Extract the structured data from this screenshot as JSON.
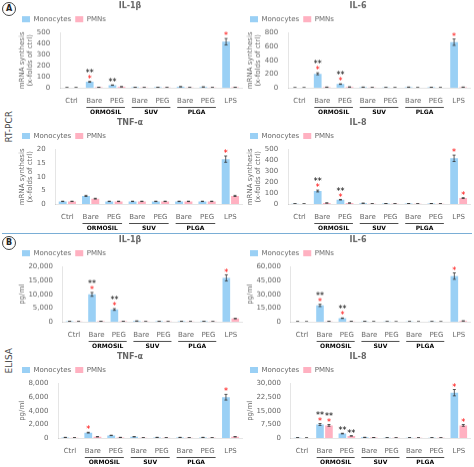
{
  "sections": [
    {
      "label": "A",
      "title": "RT-PCR"
    },
    {
      "label": "B",
      "title": "ELISA"
    }
  ],
  "chart_data": [
    {
      "type": "bar",
      "section": "A",
      "title": "IL-1β",
      "ylabel": "mRNA synthesis\n(x-folds of ctrl)",
      "categories": [
        "Ctrl",
        "Bare",
        "PEG",
        "Bare",
        "PEG",
        "Bare",
        "PEG",
        "LPS"
      ],
      "groups": [
        {
          "label": "ORMOSIL",
          "start": 1,
          "end": 2
        },
        {
          "label": "SUV",
          "start": 3,
          "end": 4
        },
        {
          "label": "PLGA",
          "start": 5,
          "end": 6
        }
      ],
      "series": [
        {
          "name": "Monocytes",
          "values": [
            2,
            55,
            25,
            5,
            5,
            10,
            8,
            420
          ],
          "errors": [
            0.14,
            3.85,
            1.75,
            0.35,
            0.35,
            0.7,
            0.56,
            29.4
          ]
        },
        {
          "name": "PMNs",
          "values": [
            2,
            5,
            10,
            3,
            3,
            3,
            3,
            5
          ],
          "errors": [
            0.14,
            0.35,
            0.7,
            0.21,
            0.21,
            0.21,
            0.21,
            0.35
          ]
        }
      ],
      "ylim": [
        0,
        500
      ],
      "yticks": [
        0,
        100,
        200,
        300,
        400,
        500
      ],
      "grid": false,
      "legend": "top",
      "annotations": [
        {
          "category": 1,
          "series": "Monocytes",
          "text": "*",
          "color": "red"
        },
        {
          "category": 1,
          "series": "Monocytes",
          "text": "**",
          "color": "black"
        },
        {
          "category": 2,
          "series": "Monocytes",
          "text": "**",
          "color": "black"
        },
        {
          "category": 7,
          "series": "Monocytes",
          "text": "*",
          "color": "red"
        }
      ]
    },
    {
      "type": "bar",
      "section": "A",
      "title": "IL-6",
      "ylabel": "mRNA synthesis\n(x-folds of ctrl)",
      "categories": [
        "Ctrl",
        "Bare",
        "PEG",
        "Bare",
        "PEG",
        "Bare",
        "PEG",
        "LPS"
      ],
      "groups": [
        {
          "label": "ORMOSIL",
          "start": 1,
          "end": 2
        },
        {
          "label": "SUV",
          "start": 3,
          "end": 4
        },
        {
          "label": "PLGA",
          "start": 5,
          "end": 6
        }
      ],
      "series": [
        {
          "name": "Monocytes",
          "values": [
            2,
            205,
            55,
            10,
            5,
            10,
            8,
            665
          ],
          "errors": [
            0.14,
            14.35,
            3.85,
            0.7,
            0.35,
            0.7,
            0.56,
            46.55
          ]
        },
        {
          "name": "PMNs",
          "values": [
            2,
            10,
            12,
            5,
            3,
            3,
            3,
            10
          ],
          "errors": [
            0.14,
            0.7,
            0.84,
            0.35,
            0.21,
            0.21,
            0.21,
            0.7
          ]
        }
      ],
      "ylim": [
        0,
        800
      ],
      "yticks": [
        0,
        200,
        400,
        600,
        800
      ],
      "grid": false,
      "legend": "top",
      "annotations": [
        {
          "category": 1,
          "series": "Monocytes",
          "text": "*",
          "color": "red"
        },
        {
          "category": 1,
          "series": "Monocytes",
          "text": "**",
          "color": "black"
        },
        {
          "category": 2,
          "series": "Monocytes",
          "text": "*",
          "color": "red"
        },
        {
          "category": 2,
          "series": "Monocytes",
          "text": "**",
          "color": "black"
        },
        {
          "category": 7,
          "series": "Monocytes",
          "text": "*",
          "color": "red"
        }
      ]
    },
    {
      "type": "bar",
      "section": "A",
      "title": "TNF-α",
      "ylabel": "mRNA synthesis\n(x-folds of ctrl)",
      "categories": [
        "Ctrl",
        "Bare",
        "PEG",
        "Bare",
        "PEG",
        "Bare",
        "PEG",
        "LPS"
      ],
      "groups": [
        {
          "label": "ORMOSIL",
          "start": 1,
          "end": 2
        },
        {
          "label": "SUV",
          "start": 3,
          "end": 4
        },
        {
          "label": "PLGA",
          "start": 5,
          "end": 6
        }
      ],
      "series": [
        {
          "name": "Monocytes",
          "values": [
            1,
            3,
            1,
            1,
            1,
            1,
            1,
            16.5
          ],
          "errors": [
            0.07,
            0.21,
            0.07,
            0.07,
            0.07,
            0.07,
            0.07,
            1.155
          ]
        },
        {
          "name": "PMNs",
          "values": [
            1,
            2,
            1,
            1,
            1,
            1,
            1,
            3
          ],
          "errors": [
            0.07,
            0.14,
            0.07,
            0.07,
            0.07,
            0.07,
            0.07,
            0.21
          ]
        }
      ],
      "ylim": [
        0,
        20
      ],
      "yticks": [
        0,
        5,
        10,
        15,
        20
      ],
      "grid": false,
      "legend": "top",
      "annotations": [
        {
          "category": 7,
          "series": "Monocytes",
          "text": "*",
          "color": "red"
        }
      ]
    },
    {
      "type": "bar",
      "section": "A",
      "title": "IL-8",
      "ylabel": "mRNA synthesis\n(x-folds of ctrl)",
      "categories": [
        "Ctrl",
        "Bare",
        "PEG",
        "Bare",
        "PEG",
        "Bare",
        "PEG",
        "LPS"
      ],
      "groups": [
        {
          "label": "ORMOSIL",
          "start": 1,
          "end": 2
        },
        {
          "label": "SUV",
          "start": 3,
          "end": 4
        },
        {
          "label": "PLGA",
          "start": 5,
          "end": 6
        }
      ],
      "series": [
        {
          "name": "Monocytes",
          "values": [
            3,
            120,
            40,
            8,
            5,
            5,
            5,
            420
          ],
          "errors": [
            0.21,
            8.4,
            2.8,
            0.56,
            0.35,
            0.35,
            0.35,
            29.4
          ]
        },
        {
          "name": "PMNs",
          "values": [
            2,
            10,
            10,
            3,
            3,
            3,
            3,
            55
          ],
          "errors": [
            0.14,
            0.7,
            0.7,
            0.21,
            0.21,
            0.21,
            0.21,
            3.85
          ]
        }
      ],
      "ylim": [
        0,
        500
      ],
      "yticks": [
        0,
        100,
        200,
        300,
        400,
        500
      ],
      "grid": false,
      "legend": "top",
      "annotations": [
        {
          "category": 1,
          "series": "Monocytes",
          "text": "*",
          "color": "red"
        },
        {
          "category": 1,
          "series": "Monocytes",
          "text": "**",
          "color": "black"
        },
        {
          "category": 2,
          "series": "Monocytes",
          "text": "*",
          "color": "red"
        },
        {
          "category": 2,
          "series": "Monocytes",
          "text": "**",
          "color": "black"
        },
        {
          "category": 7,
          "series": "Monocytes",
          "text": "*",
          "color": "red"
        },
        {
          "category": 7,
          "series": "PMNs",
          "text": "*",
          "color": "red"
        }
      ]
    },
    {
      "type": "bar",
      "section": "B",
      "title": "IL-1β",
      "ylabel": "pg/ml",
      "categories": [
        "Ctrl",
        "Bare",
        "PEG",
        "Bare",
        "PEG",
        "Bare",
        "PEG",
        "LPS"
      ],
      "groups": [
        {
          "label": "ORMOSIL",
          "start": 1,
          "end": 2
        },
        {
          "label": "SUV",
          "start": 3,
          "end": 4
        },
        {
          "label": "PLGA",
          "start": 5,
          "end": 6
        }
      ],
      "series": [
        {
          "name": "Monocytes",
          "values": [
            200,
            10000,
            4500,
            300,
            200,
            200,
            200,
            16000
          ],
          "errors": [
            14,
            700,
            315,
            21,
            14,
            14,
            14,
            1120
          ]
        },
        {
          "name": "PMNs",
          "values": [
            100,
            200,
            200,
            100,
            100,
            100,
            100,
            1200
          ],
          "errors": [
            7,
            14,
            14,
            7,
            7,
            7,
            7,
            84
          ]
        }
      ],
      "ylim": [
        0,
        20000
      ],
      "yticks": [
        0,
        {
          "value": 5000,
          "label": "5,000"
        },
        {
          "value": 10000,
          "label": "10,000"
        },
        {
          "value": 15000,
          "label": "15,000"
        },
        {
          "value": 20000,
          "label": "20,000"
        }
      ],
      "grid": false,
      "legend": "top",
      "annotations": [
        {
          "category": 1,
          "series": "Monocytes",
          "text": "*",
          "color": "red"
        },
        {
          "category": 1,
          "series": "Monocytes",
          "text": "**",
          "color": "black"
        },
        {
          "category": 2,
          "series": "Monocytes",
          "text": "*",
          "color": "red"
        },
        {
          "category": 2,
          "series": "Monocytes",
          "text": "**",
          "color": "black"
        },
        {
          "category": 7,
          "series": "Monocytes",
          "text": "*",
          "color": "red"
        }
      ]
    },
    {
      "type": "bar",
      "section": "B",
      "title": "IL-6",
      "ylabel": "pg/ml",
      "categories": [
        "Ctrl",
        "Bare",
        "PEG",
        "Bare",
        "PEG",
        "Bare",
        "PEG",
        "LPS"
      ],
      "groups": [
        {
          "label": "ORMOSIL",
          "start": 1,
          "end": 2
        },
        {
          "label": "SUV",
          "start": 3,
          "end": 4
        },
        {
          "label": "PLGA",
          "start": 5,
          "end": 6
        }
      ],
      "series": [
        {
          "name": "Monocytes",
          "values": [
            200,
            18000,
            4000,
            500,
            300,
            300,
            300,
            50000
          ],
          "errors": [
            14,
            1260,
            280,
            35,
            21,
            21,
            21,
            3500
          ]
        },
        {
          "name": "PMNs",
          "values": [
            100,
            500,
            500,
            200,
            100,
            100,
            100,
            1000
          ],
          "errors": [
            7,
            35,
            35,
            14,
            7,
            7,
            7,
            70
          ]
        }
      ],
      "ylim": [
        0,
        60000
      ],
      "yticks": [
        0,
        {
          "value": 15000,
          "label": "15,000"
        },
        {
          "value": 30000,
          "label": "30,000"
        },
        {
          "value": 45000,
          "label": "45,000"
        },
        {
          "value": 60000,
          "label": "60,000"
        }
      ],
      "grid": false,
      "legend": "top",
      "annotations": [
        {
          "category": 1,
          "series": "Monocytes",
          "text": "*",
          "color": "red"
        },
        {
          "category": 1,
          "series": "Monocytes",
          "text": "**",
          "color": "black"
        },
        {
          "category": 2,
          "series": "Monocytes",
          "text": "*",
          "color": "red"
        },
        {
          "category": 2,
          "series": "Monocytes",
          "text": "**",
          "color": "black"
        },
        {
          "category": 7,
          "series": "Monocytes",
          "text": "*",
          "color": "red"
        }
      ]
    },
    {
      "type": "bar",
      "section": "B",
      "title": "TNF-α",
      "ylabel": "pg/ml",
      "categories": [
        "Ctrl",
        "Bare",
        "PEG",
        "Bare",
        "PEG",
        "Bare",
        "PEG",
        "LPS"
      ],
      "groups": [
        {
          "label": "ORMOSIL",
          "start": 1,
          "end": 2
        },
        {
          "label": "SUV",
          "start": 3,
          "end": 4
        },
        {
          "label": "PLGA",
          "start": 5,
          "end": 6
        }
      ],
      "series": [
        {
          "name": "Monocytes",
          "values": [
            100,
            800,
            400,
            200,
            100,
            100,
            100,
            6000
          ],
          "errors": [
            7,
            56,
            28,
            14,
            7,
            7,
            7,
            420
          ]
        },
        {
          "name": "PMNs",
          "values": [
            50,
            200,
            100,
            50,
            50,
            50,
            50,
            200
          ],
          "errors": [
            3.5,
            14,
            7,
            3.5,
            3.5,
            3.5,
            3.5,
            14
          ]
        }
      ],
      "ylim": [
        0,
        8000
      ],
      "yticks": [
        0,
        {
          "value": 2000,
          "label": "2,000"
        },
        {
          "value": 4000,
          "label": "4,000"
        },
        {
          "value": 6000,
          "label": "6,000"
        },
        {
          "value": 8000,
          "label": "8,000"
        }
      ],
      "grid": false,
      "legend": "top",
      "annotations": [
        {
          "category": 1,
          "series": "Monocytes",
          "text": "*",
          "color": "red"
        },
        {
          "category": 7,
          "series": "Monocytes",
          "text": "*",
          "color": "red"
        }
      ]
    },
    {
      "type": "bar",
      "section": "B",
      "title": "IL-8",
      "ylabel": "pg/ml",
      "categories": [
        "Ctrl",
        "Bare",
        "PEG",
        "Bare",
        "PEG",
        "Bare",
        "PEG",
        "LPS"
      ],
      "groups": [
        {
          "label": "ORMOSIL",
          "start": 1,
          "end": 2
        },
        {
          "label": "SUV",
          "start": 3,
          "end": 4
        },
        {
          "label": "PLGA",
          "start": 5,
          "end": 6
        }
      ],
      "series": [
        {
          "name": "Monocytes",
          "values": [
            200,
            7500,
            2500,
            400,
            200,
            200,
            200,
            25000
          ],
          "errors": [
            14,
            525,
            175,
            28,
            14,
            14,
            14,
            1750
          ]
        },
        {
          "name": "PMNs",
          "values": [
            100,
            7000,
            1200,
            300,
            150,
            150,
            150,
            7000
          ],
          "errors": [
            7,
            490,
            84,
            21,
            10.5,
            10.5,
            10.5,
            490
          ]
        }
      ],
      "ylim": [
        0,
        30000
      ],
      "yticks": [
        0,
        {
          "value": 7500,
          "label": "7,500"
        },
        {
          "value": 15000,
          "label": "15,000"
        },
        {
          "value": 22500,
          "label": "22,500"
        },
        {
          "value": 30000,
          "label": "30,000"
        }
      ],
      "grid": false,
      "legend": "top",
      "annotations": [
        {
          "category": 1,
          "series": "Monocytes",
          "text": "*",
          "color": "red"
        },
        {
          "category": 1,
          "series": "Monocytes",
          "text": "**",
          "color": "black"
        },
        {
          "category": 1,
          "series": "PMNs",
          "text": "*",
          "color": "red"
        },
        {
          "category": 1,
          "series": "PMNs",
          "text": "**",
          "color": "black"
        },
        {
          "category": 2,
          "series": "Monocytes",
          "text": "**",
          "color": "black"
        },
        {
          "category": 2,
          "series": "PMNs",
          "text": "**",
          "color": "black"
        },
        {
          "category": 7,
          "series": "Monocytes",
          "text": "*",
          "color": "red"
        },
        {
          "category": 7,
          "series": "PMNs",
          "text": "*",
          "color": "red"
        }
      ]
    }
  ]
}
